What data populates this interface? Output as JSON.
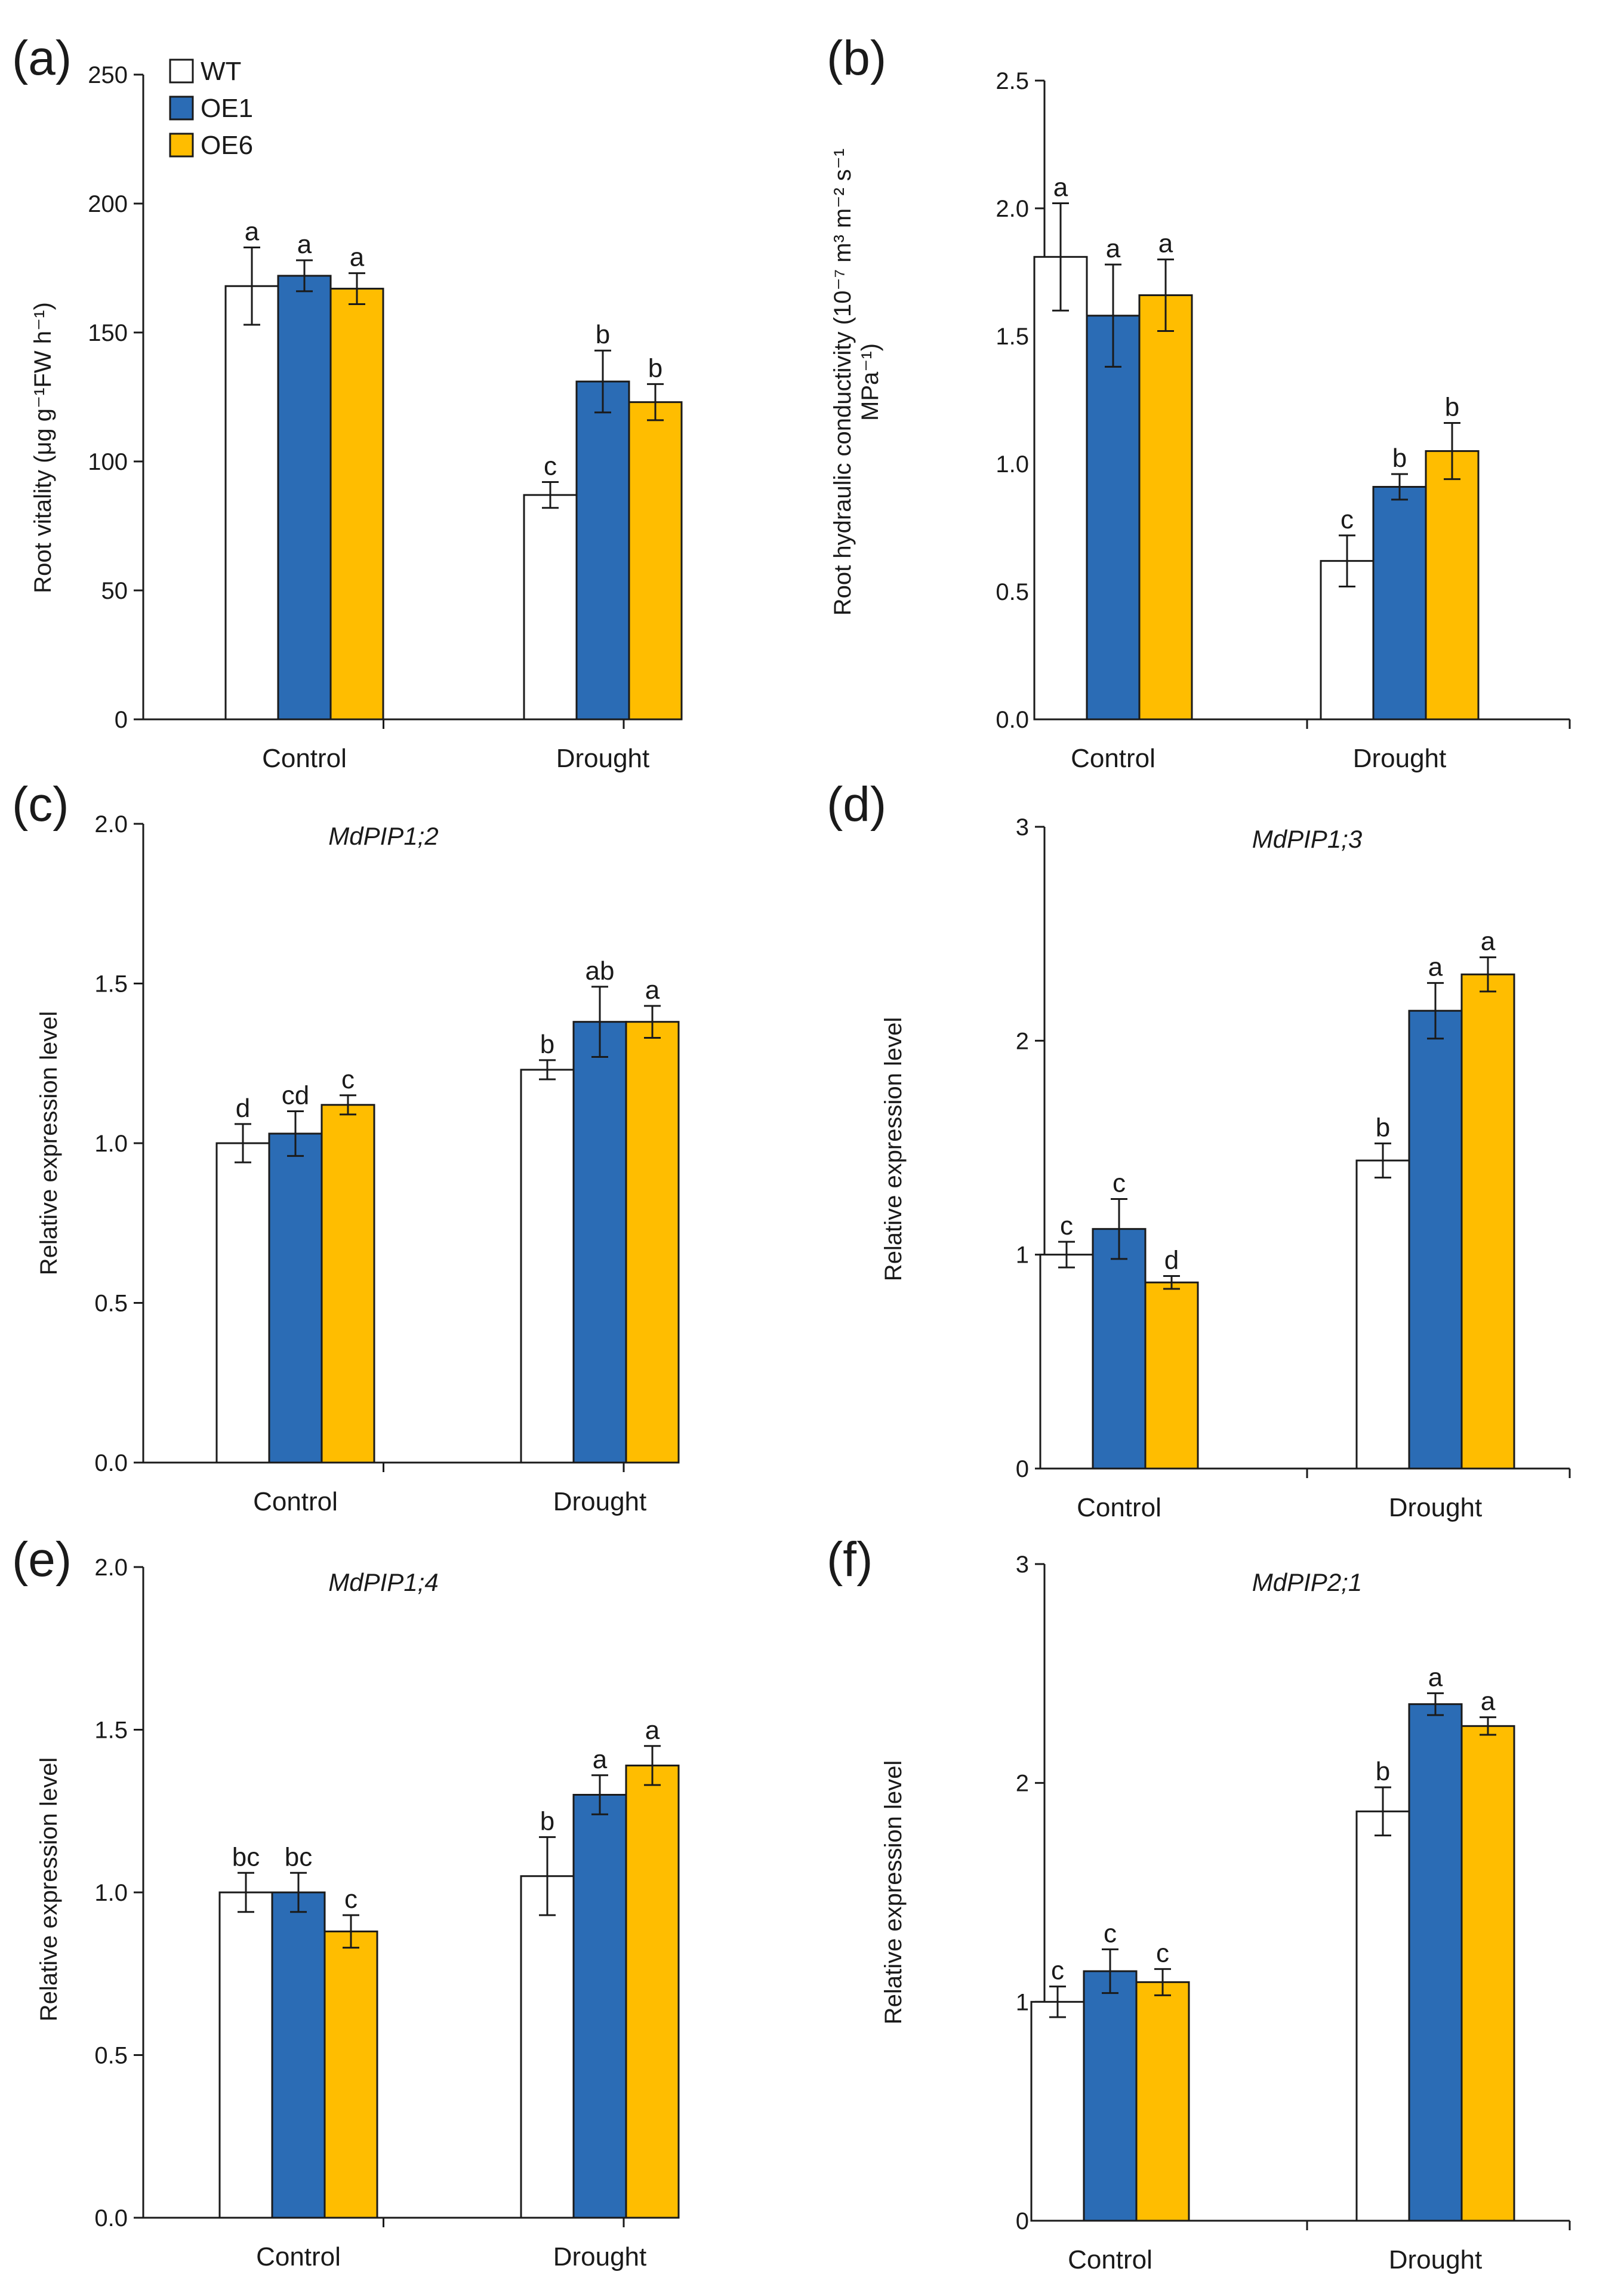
{
  "colors": {
    "WT": "#ffffff",
    "OE1": "#2b6cb5",
    "OE6": "#ffbd00",
    "axis": "#1a1a1a"
  },
  "legend": [
    {
      "name": "WT",
      "color": "#ffffff"
    },
    {
      "name": "OE1",
      "color": "#2b6cb5"
    },
    {
      "name": "OE6",
      "color": "#ffbd00"
    }
  ],
  "chart_data": [
    {
      "panel": "(a)",
      "type": "bar",
      "title": "",
      "ylabel": "Root vitality (μg g⁻¹FW h⁻¹)",
      "ylim": [
        0,
        250
      ],
      "yticks": [
        "0",
        "50",
        "100",
        "150",
        "200",
        "250"
      ],
      "categories": [
        "Control",
        "Drought"
      ],
      "series": [
        {
          "name": "WT",
          "values": [
            168,
            87
          ],
          "errors": [
            15,
            5
          ],
          "letters": [
            "a",
            "c"
          ]
        },
        {
          "name": "OE1",
          "values": [
            172,
            131
          ],
          "errors": [
            6,
            12
          ],
          "letters": [
            "a",
            "b"
          ]
        },
        {
          "name": "OE6",
          "values": [
            167,
            123
          ],
          "errors": [
            6,
            7
          ],
          "letters": [
            "a",
            "b"
          ]
        }
      ]
    },
    {
      "panel": "(b)",
      "type": "bar",
      "title": "",
      "ylabel": "Root hydraulic conductivity (10⁻⁷ m³ m⁻² s⁻¹ MPa⁻¹)",
      "ylabel_lines": [
        "Root hydraulic conductivity (10⁻⁷ m³ m⁻² s⁻¹",
        "MPa⁻¹)"
      ],
      "ylim": [
        0,
        2.5
      ],
      "yticks": [
        "0.0",
        "0.5",
        "1.0",
        "1.5",
        "2.0",
        "2.5"
      ],
      "categories": [
        "Control",
        "Drought"
      ],
      "series": [
        {
          "name": "WT",
          "values": [
            1.81,
            0.62
          ],
          "errors": [
            0.21,
            0.1
          ],
          "letters": [
            "a",
            "c"
          ]
        },
        {
          "name": "OE1",
          "values": [
            1.58,
            0.91
          ],
          "errors": [
            0.2,
            0.05
          ],
          "letters": [
            "a",
            "b"
          ]
        },
        {
          "name": "OE6",
          "values": [
            1.66,
            1.05
          ],
          "errors": [
            0.14,
            0.11
          ],
          "letters": [
            "a",
            "b"
          ]
        }
      ]
    },
    {
      "panel": "(c)",
      "type": "bar",
      "title": "MdPIP1;2",
      "ylabel": "Relative expression level",
      "ylim": [
        0,
        2.0
      ],
      "yticks": [
        "0.0",
        "0.5",
        "1.0",
        "1.5",
        "2.0"
      ],
      "categories": [
        "Control",
        "Drought"
      ],
      "series": [
        {
          "name": "WT",
          "values": [
            1.0,
            1.23
          ],
          "errors": [
            0.06,
            0.03
          ],
          "letters": [
            "d",
            "b"
          ]
        },
        {
          "name": "OE1",
          "values": [
            1.03,
            1.38
          ],
          "errors": [
            0.07,
            0.11
          ],
          "letters": [
            "cd",
            "ab"
          ]
        },
        {
          "name": "OE6",
          "values": [
            1.12,
            1.38
          ],
          "errors": [
            0.03,
            0.05
          ],
          "letters": [
            "c",
            "a"
          ]
        }
      ]
    },
    {
      "panel": "(d)",
      "type": "bar",
      "title": "MdPIP1;3",
      "ylabel": "Relative expression level",
      "ylim": [
        0,
        3
      ],
      "yticks": [
        "0",
        "1",
        "2",
        "3"
      ],
      "categories": [
        "Control",
        "Drought"
      ],
      "series": [
        {
          "name": "WT",
          "values": [
            1.0,
            1.44
          ],
          "errors": [
            0.06,
            0.08
          ],
          "letters": [
            "c",
            "b"
          ]
        },
        {
          "name": "OE1",
          "values": [
            1.12,
            2.14
          ],
          "errors": [
            0.14,
            0.13
          ],
          "letters": [
            "c",
            "a"
          ]
        },
        {
          "name": "OE6",
          "values": [
            0.87,
            2.31
          ],
          "errors": [
            0.03,
            0.08
          ],
          "letters": [
            "d",
            "a"
          ]
        }
      ]
    },
    {
      "panel": "(e)",
      "type": "bar",
      "title": "MdPIP1;4",
      "ylabel": "Relative expression level",
      "ylim": [
        0,
        2.0
      ],
      "yticks": [
        "0.0",
        "0.5",
        "1.0",
        "1.5",
        "2.0"
      ],
      "categories": [
        "Control",
        "Drought"
      ],
      "series": [
        {
          "name": "WT",
          "values": [
            1.0,
            1.05
          ],
          "errors": [
            0.06,
            0.12
          ],
          "letters": [
            "bc",
            "b"
          ]
        },
        {
          "name": "OE1",
          "values": [
            1.0,
            1.3
          ],
          "errors": [
            0.06,
            0.06
          ],
          "letters": [
            "bc",
            "a"
          ]
        },
        {
          "name": "OE6",
          "values": [
            0.88,
            1.39
          ],
          "errors": [
            0.05,
            0.06
          ],
          "letters": [
            "c",
            "a"
          ]
        }
      ]
    },
    {
      "panel": "(f)",
      "type": "bar",
      "title": "MdPIP2;1",
      "ylabel": "Relative expression level",
      "ylim": [
        0,
        3
      ],
      "yticks": [
        "0",
        "1",
        "2",
        "3"
      ],
      "categories": [
        "Control",
        "Drought"
      ],
      "series": [
        {
          "name": "WT",
          "values": [
            1.0,
            1.87
          ],
          "errors": [
            0.07,
            0.11
          ],
          "letters": [
            "c",
            "b"
          ]
        },
        {
          "name": "OE1",
          "values": [
            1.14,
            2.36
          ],
          "errors": [
            0.1,
            0.05
          ],
          "letters": [
            "c",
            "a"
          ]
        },
        {
          "name": "OE6",
          "values": [
            1.09,
            2.26
          ],
          "errors": [
            0.06,
            0.04
          ],
          "letters": [
            "c",
            "a"
          ]
        }
      ]
    }
  ]
}
